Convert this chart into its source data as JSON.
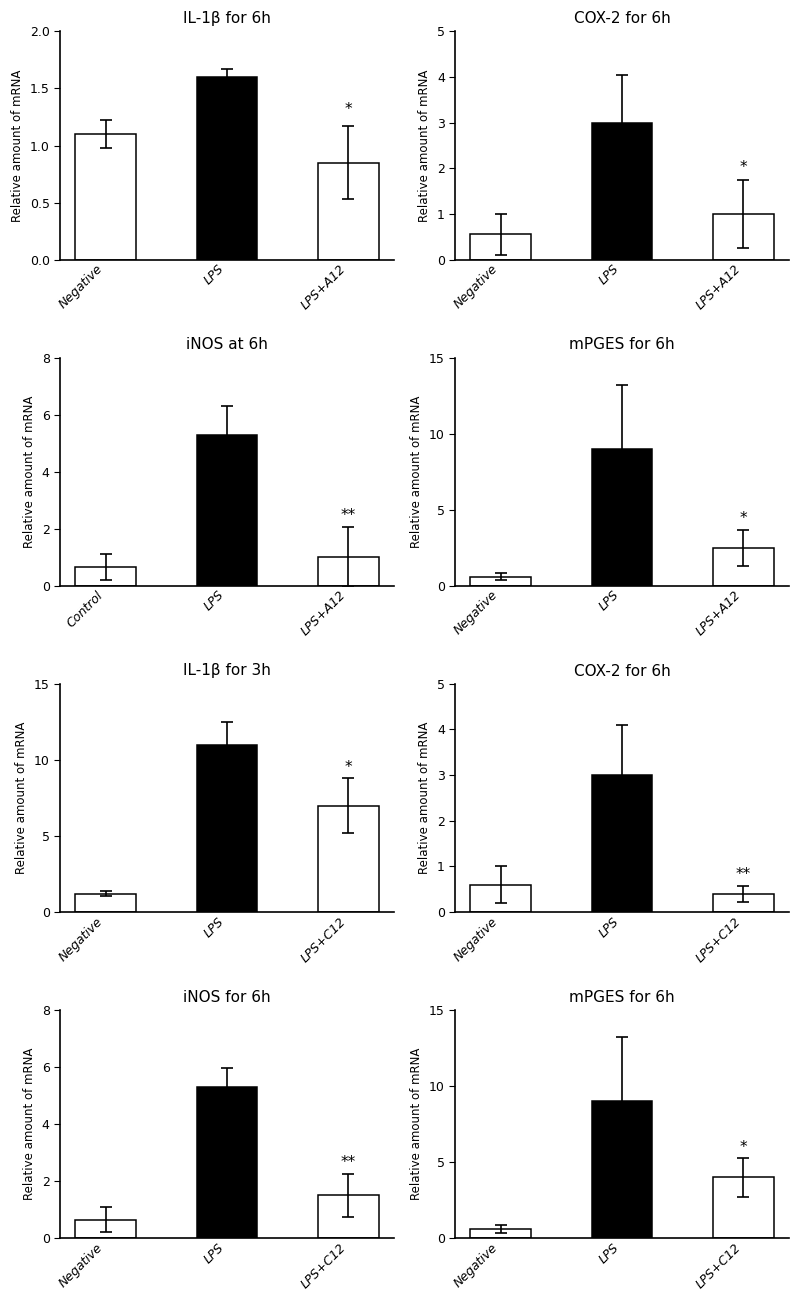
{
  "subplots": [
    {
      "title": "IL-1β for 6h",
      "categories": [
        "Negative",
        "LPS",
        "LPS+A12"
      ],
      "values": [
        1.1,
        1.6,
        0.85
      ],
      "errors": [
        0.12,
        0.07,
        0.32
      ],
      "colors": [
        "white",
        "black",
        "white"
      ],
      "ylim": [
        0,
        2.0
      ],
      "yticks": [
        0.0,
        0.5,
        1.0,
        1.5,
        2.0
      ],
      "significance": [
        null,
        null,
        "*"
      ],
      "sig_y": [
        null,
        null,
        1.25
      ]
    },
    {
      "title": "COX-2 for 6h",
      "categories": [
        "Negative",
        "LPS",
        "LPS+A12"
      ],
      "values": [
        0.55,
        3.0,
        1.0
      ],
      "errors": [
        0.45,
        1.05,
        0.75
      ],
      "colors": [
        "white",
        "black",
        "white"
      ],
      "ylim": [
        0,
        5
      ],
      "yticks": [
        0,
        1,
        2,
        3,
        4,
        5
      ],
      "significance": [
        null,
        null,
        "*"
      ],
      "sig_y": [
        null,
        null,
        1.85
      ]
    },
    {
      "title": "iNOS at 6h",
      "categories": [
        "Control",
        "LPS",
        "LPS+A12"
      ],
      "values": [
        0.65,
        5.3,
        1.0
      ],
      "errors": [
        0.45,
        1.0,
        1.05
      ],
      "colors": [
        "white",
        "black",
        "white"
      ],
      "ylim": [
        0,
        8
      ],
      "yticks": [
        0,
        2,
        4,
        6,
        8
      ],
      "significance": [
        null,
        null,
        "**"
      ],
      "sig_y": [
        null,
        null,
        2.2
      ]
    },
    {
      "title": "mPGES for 6h",
      "categories": [
        "Negative",
        "LPS",
        "LPS+A12"
      ],
      "values": [
        0.6,
        9.0,
        2.5
      ],
      "errors": [
        0.25,
        4.2,
        1.2
      ],
      "colors": [
        "white",
        "black",
        "white"
      ],
      "ylim": [
        0,
        15
      ],
      "yticks": [
        0,
        5,
        10,
        15
      ],
      "significance": [
        null,
        null,
        "*"
      ],
      "sig_y": [
        null,
        null,
        3.9
      ]
    },
    {
      "title": "IL-1β for 3h",
      "categories": [
        "Negative",
        "LPS",
        "LPS+C12"
      ],
      "values": [
        1.2,
        11.0,
        7.0
      ],
      "errors": [
        0.18,
        1.5,
        1.8
      ],
      "colors": [
        "white",
        "black",
        "white"
      ],
      "ylim": [
        0,
        15
      ],
      "yticks": [
        0,
        5,
        10,
        15
      ],
      "significance": [
        null,
        null,
        "*"
      ],
      "sig_y": [
        null,
        null,
        9.0
      ]
    },
    {
      "title": "COX-2 for 6h",
      "categories": [
        "Negative",
        "LPS",
        "LPS+C12"
      ],
      "values": [
        0.6,
        3.0,
        0.4
      ],
      "errors": [
        0.4,
        1.1,
        0.18
      ],
      "colors": [
        "white",
        "black",
        "white"
      ],
      "ylim": [
        0,
        5
      ],
      "yticks": [
        0,
        1,
        2,
        3,
        4,
        5
      ],
      "significance": [
        null,
        null,
        "**"
      ],
      "sig_y": [
        null,
        null,
        0.65
      ]
    },
    {
      "title": "iNOS for 6h",
      "categories": [
        "Negative",
        "LPS",
        "LPS+C12"
      ],
      "values": [
        0.65,
        5.3,
        1.5
      ],
      "errors": [
        0.45,
        0.65,
        0.75
      ],
      "colors": [
        "white",
        "black",
        "white"
      ],
      "ylim": [
        0,
        8
      ],
      "yticks": [
        0,
        2,
        4,
        6,
        8
      ],
      "significance": [
        null,
        null,
        "**"
      ],
      "sig_y": [
        null,
        null,
        2.4
      ]
    },
    {
      "title": "mPGES for 6h",
      "categories": [
        "Negative",
        "LPS",
        "LPS+C12"
      ],
      "values": [
        0.6,
        9.0,
        4.0
      ],
      "errors": [
        0.25,
        4.2,
        1.3
      ],
      "colors": [
        "white",
        "black",
        "white"
      ],
      "ylim": [
        0,
        15
      ],
      "yticks": [
        0,
        5,
        10,
        15
      ],
      "significance": [
        null,
        null,
        "*"
      ],
      "sig_y": [
        null,
        null,
        5.5
      ]
    }
  ],
  "ylabel": "Relative amount of mRNA",
  "bar_width": 0.5,
  "background_color": "#ffffff",
  "edgecolor": "#000000",
  "title_fontsize": 11,
  "label_fontsize": 8.5,
  "tick_fontsize": 9,
  "sig_fontsize": 11
}
